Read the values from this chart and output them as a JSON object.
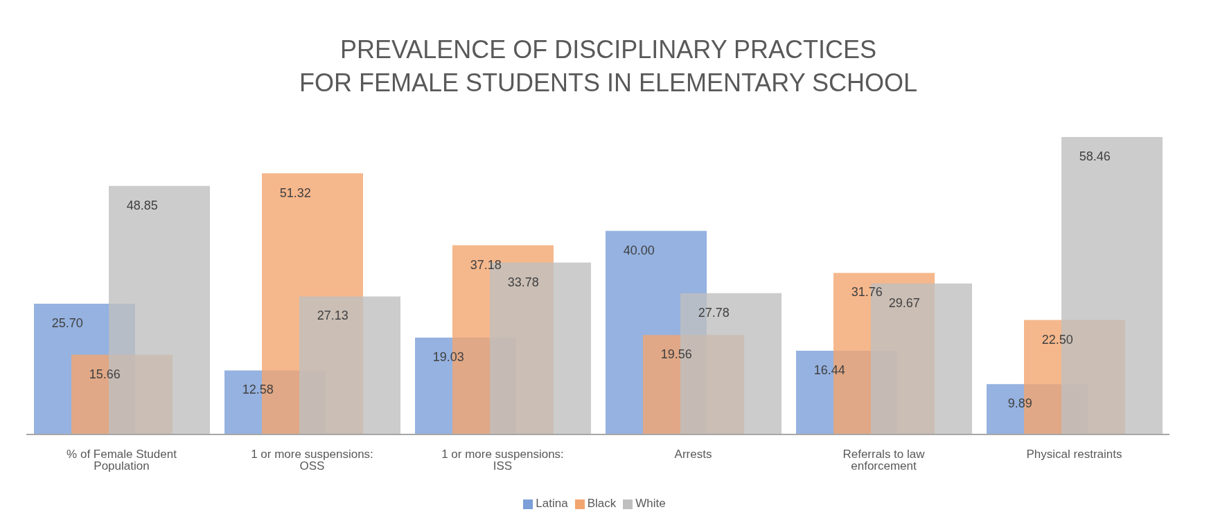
{
  "chart_data": {
    "type": "bar",
    "title": "PREVALENCE OF DISCIPLINARY PRACTICES\nFOR FEMALE STUDENTS IN ELEMENTARY SCHOOL",
    "categories": [
      "% of Female Student Population",
      "1 or more suspensions: OSS",
      "1 or more suspensions: ISS",
      "Arrests",
      "Referrals to law enforcement",
      "Physical restraints"
    ],
    "series": [
      {
        "name": "Latina",
        "color": "#7b9fd8",
        "values": [
          25.7,
          12.58,
          19.03,
          40.0,
          16.44,
          9.89
        ],
        "value_labels": [
          "25.70",
          "12.58",
          "19.03",
          "40.00",
          "16.44",
          "9.89"
        ]
      },
      {
        "name": "Black",
        "color": "#f2a56f",
        "values": [
          15.66,
          51.32,
          37.18,
          19.56,
          31.76,
          22.5
        ],
        "value_labels": [
          "15.66",
          "51.32",
          "37.18",
          "19.56",
          "31.76",
          "22.50"
        ]
      },
      {
        "name": "White",
        "color": "#bfbfbf",
        "values": [
          48.85,
          27.13,
          33.78,
          27.78,
          29.67,
          58.46
        ],
        "value_labels": [
          "48.85",
          "27.13",
          "33.78",
          "27.78",
          "29.67",
          "58.46"
        ]
      }
    ],
    "legend": "bottom",
    "grid": false
  }
}
